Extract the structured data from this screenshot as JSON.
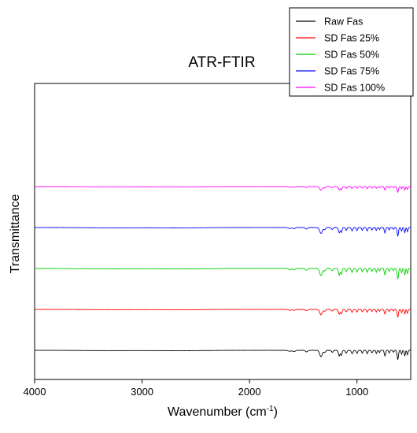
{
  "chart_data": {
    "type": "line",
    "title": "ATR-FTIR",
    "xlabel_main": "Wavenumber (cm",
    "xlabel_sup": "-1",
    "xlabel_close": ")",
    "ylabel": "Transmittance",
    "x_reversed": true,
    "xlim": [
      4000,
      500
    ],
    "xticks": [
      {
        "value": 4000,
        "label": "4000"
      },
      {
        "value": 3000,
        "label": "3000"
      },
      {
        "value": 2000,
        "label": "2000"
      },
      {
        "value": 1000,
        "label": "1000"
      }
    ],
    "y_tick_labels": false,
    "grid": false,
    "legend_position": "top-right",
    "peaks": [
      {
        "wn": 1625,
        "depth": 0.15,
        "width": 14
      },
      {
        "wn": 1585,
        "depth": 0.2,
        "width": 10
      },
      {
        "wn": 1470,
        "depth": 0.25,
        "width": 10
      },
      {
        "wn": 1335,
        "depth": 1.0,
        "width": 12
      },
      {
        "wn": 1300,
        "depth": 0.35,
        "width": 8
      },
      {
        "wn": 1230,
        "depth": 0.3,
        "width": 8
      },
      {
        "wn": 1165,
        "depth": 0.9,
        "width": 7
      },
      {
        "wn": 1145,
        "depth": 0.8,
        "width": 6
      },
      {
        "wn": 1100,
        "depth": 0.45,
        "width": 7
      },
      {
        "wn": 1045,
        "depth": 0.55,
        "width": 7
      },
      {
        "wn": 1000,
        "depth": 0.5,
        "width": 6
      },
      {
        "wn": 950,
        "depth": 0.45,
        "width": 6
      },
      {
        "wn": 905,
        "depth": 0.55,
        "width": 6
      },
      {
        "wn": 860,
        "depth": 0.4,
        "width": 6
      },
      {
        "wn": 820,
        "depth": 0.5,
        "width": 5
      },
      {
        "wn": 790,
        "depth": 0.35,
        "width": 5
      },
      {
        "wn": 740,
        "depth": 0.9,
        "width": 6
      },
      {
        "wn": 700,
        "depth": 0.4,
        "width": 5
      },
      {
        "wn": 660,
        "depth": 0.3,
        "width": 5
      },
      {
        "wn": 620,
        "depth": 1.5,
        "width": 6
      },
      {
        "wn": 585,
        "depth": 0.6,
        "width": 5
      },
      {
        "wn": 555,
        "depth": 0.9,
        "width": 5
      },
      {
        "wn": 530,
        "depth": 0.7,
        "width": 5
      }
    ],
    "broad_bands": [
      {
        "wn": 3300,
        "depth": 0.05,
        "width": 250
      },
      {
        "wn": 2650,
        "depth": 0.06,
        "width": 220
      }
    ],
    "series": [
      {
        "name": "Raw Fas",
        "color": "#000000",
        "offset": 0.0,
        "scale": 1.0
      },
      {
        "name": "SD Fas 25%",
        "color": "#ff0000",
        "offset": 1.0,
        "scale": 0.85
      },
      {
        "name": "SD Fas 50%",
        "color": "#00d000",
        "offset": 2.0,
        "scale": 1.15
      },
      {
        "name": "SD Fas 75%",
        "color": "#0000ff",
        "offset": 3.0,
        "scale": 0.95
      },
      {
        "name": "SD Fas 100%",
        "color": "#ff00ff",
        "offset": 4.0,
        "scale": 0.6
      }
    ]
  }
}
